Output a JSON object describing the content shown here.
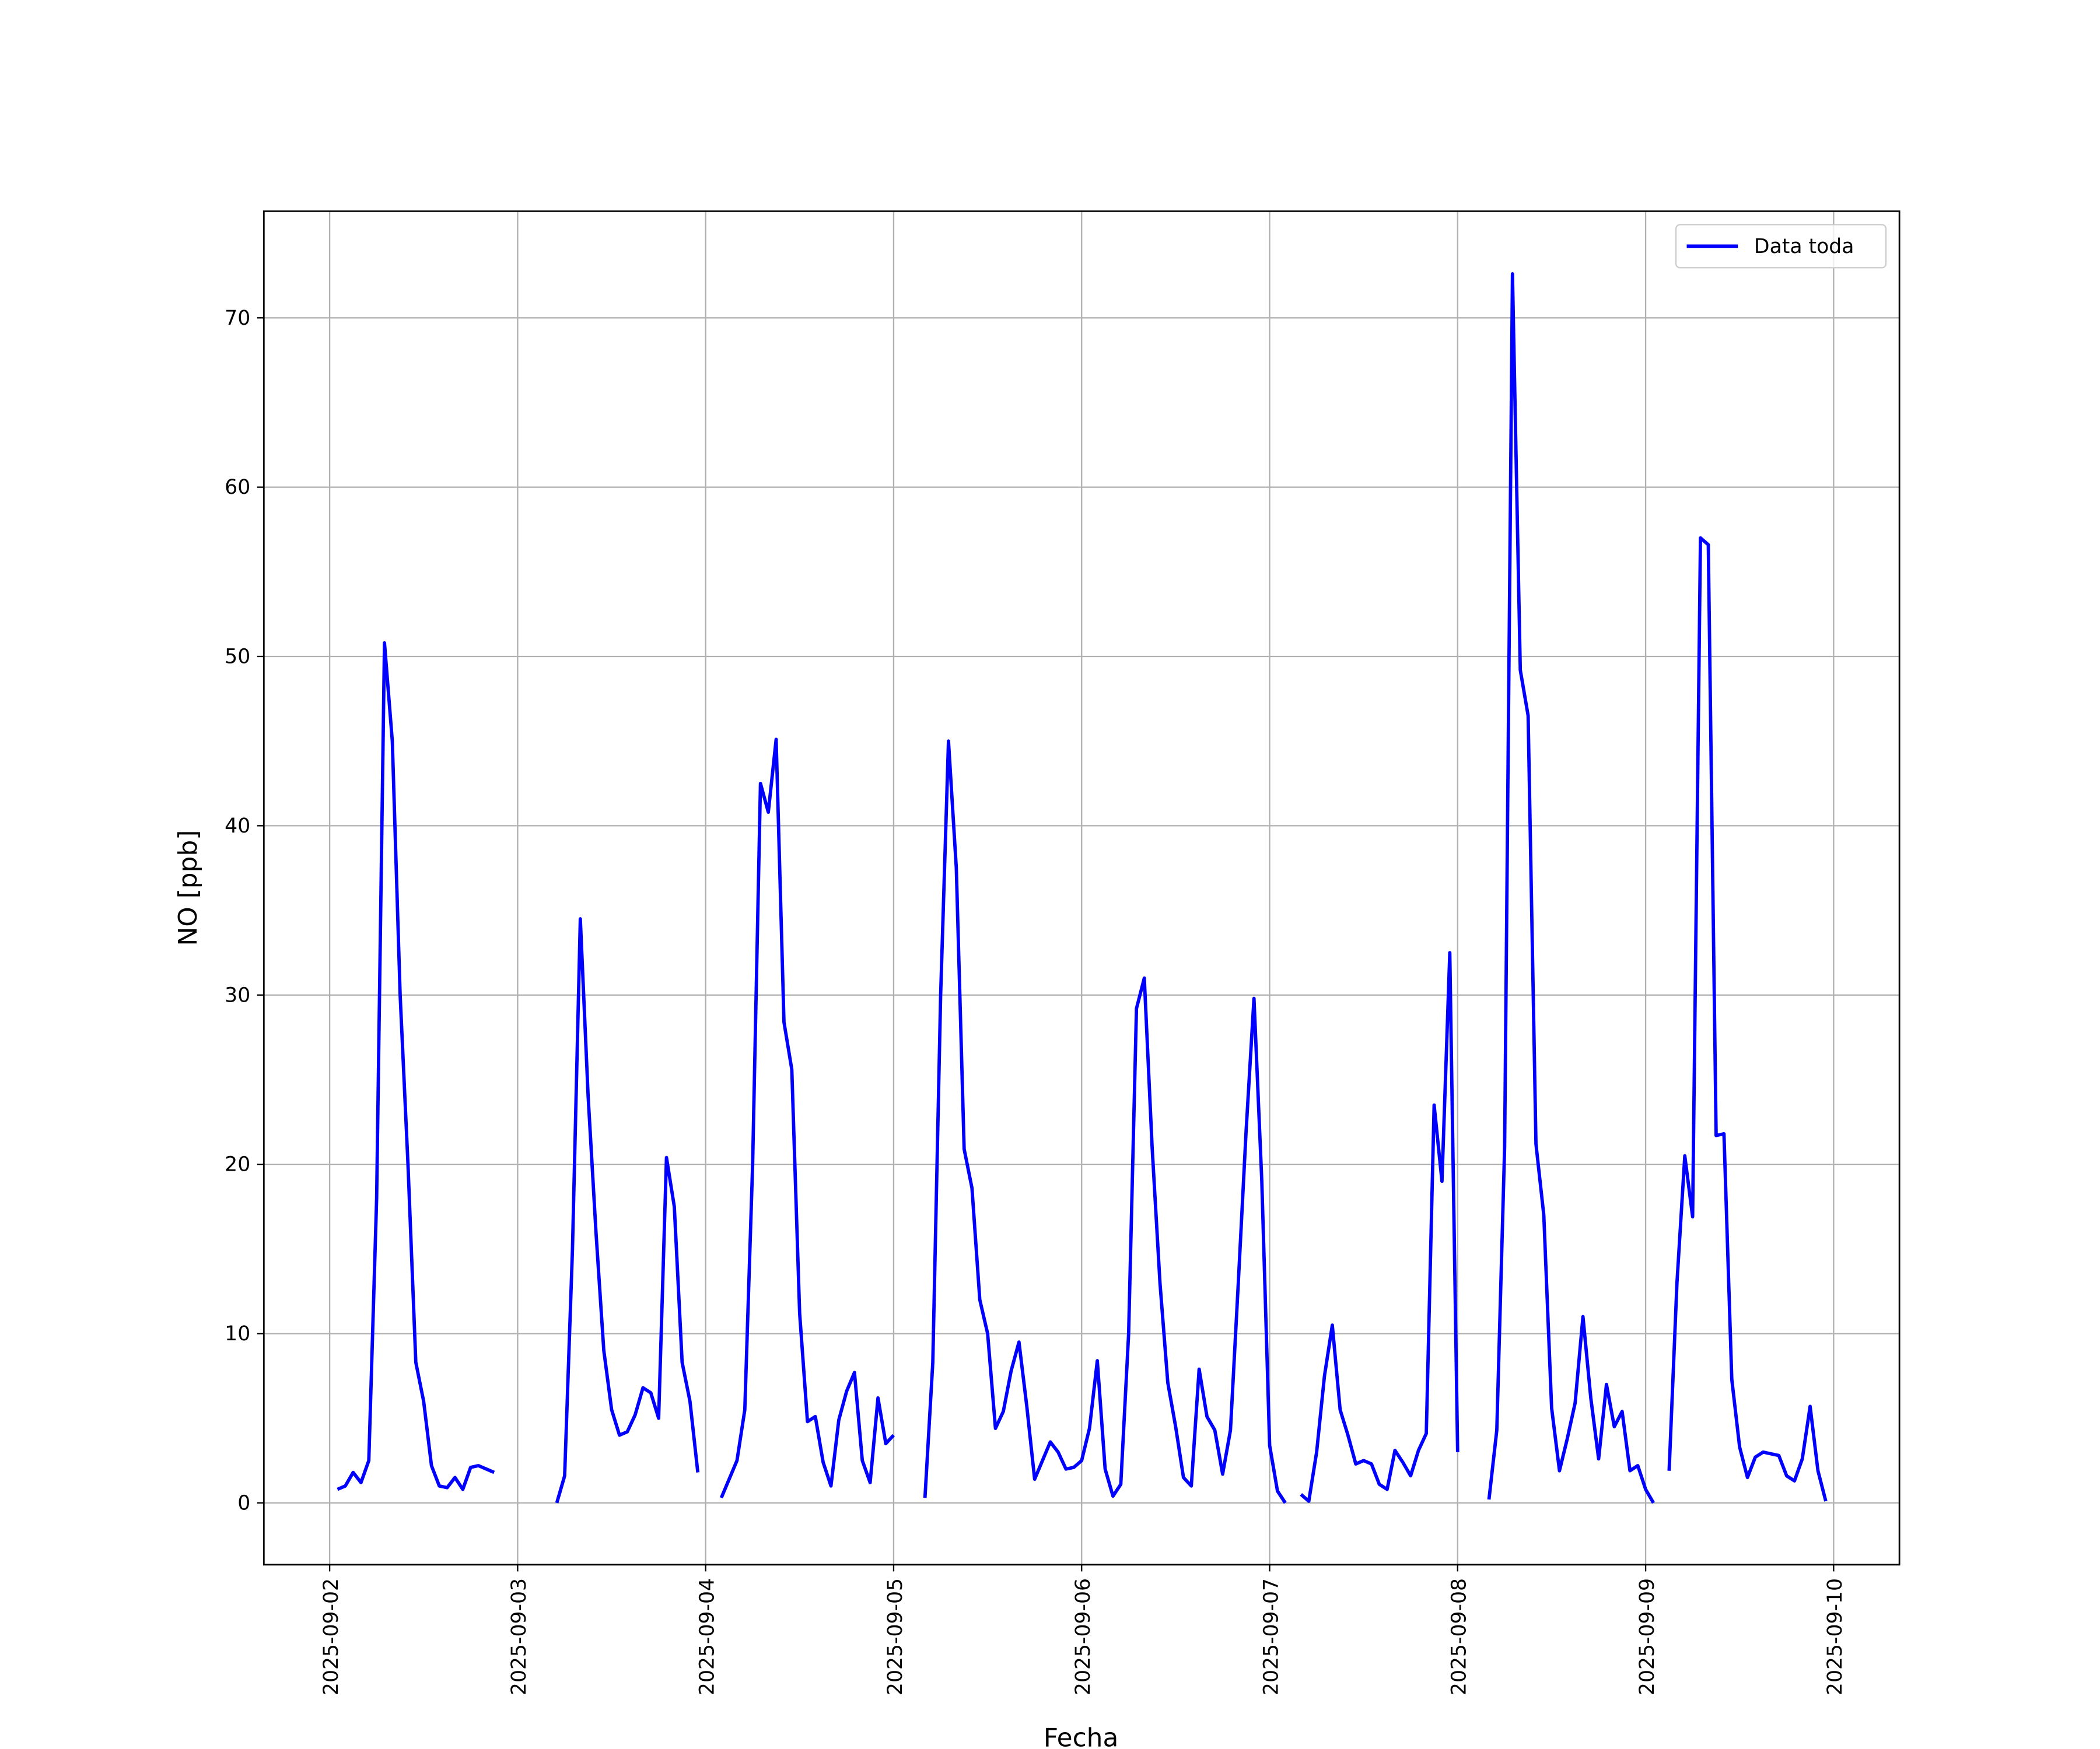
{
  "chart_data": {
    "type": "line",
    "x_label": "Fecha",
    "y_label": "NO [ppb]",
    "xlim": [
      "2025-09-01T15:36",
      "2025-09-10T08:24"
    ],
    "xticks": [
      "2025-09-02",
      "2025-09-03",
      "2025-09-04",
      "2025-09-05",
      "2025-09-06",
      "2025-09-07",
      "2025-09-08",
      "2025-09-09",
      "2025-09-10"
    ],
    "ylim": [
      -3.65,
      76.3
    ],
    "yticks": [
      0,
      10,
      20,
      30,
      40,
      50,
      60,
      70
    ],
    "grid": true,
    "legend": "upper right",
    "series": [
      {
        "name": "Data toda",
        "color": "#0000ff",
        "x": [
          "2025-09-02T01:00",
          "2025-09-02T02:00",
          "2025-09-02T03:00",
          "2025-09-02T04:00",
          "2025-09-02T05:00",
          "2025-09-02T06:00",
          "2025-09-02T07:00",
          "2025-09-02T08:00",
          "2025-09-02T09:00",
          "2025-09-02T10:00",
          "2025-09-02T11:00",
          "2025-09-02T12:00",
          "2025-09-02T13:00",
          "2025-09-02T14:00",
          "2025-09-02T15:00",
          "2025-09-02T16:00",
          "2025-09-02T17:00",
          "2025-09-02T18:00",
          "2025-09-02T19:00",
          "2025-09-02T21:00",
          null,
          "2025-09-03T05:00",
          "2025-09-03T06:00",
          "2025-09-03T07:00",
          "2025-09-03T08:00",
          "2025-09-03T09:00",
          "2025-09-03T10:00",
          "2025-09-03T11:00",
          "2025-09-03T12:00",
          "2025-09-03T13:00",
          "2025-09-03T14:00",
          "2025-09-03T15:00",
          "2025-09-03T16:00",
          "2025-09-03T17:00",
          "2025-09-03T18:00",
          "2025-09-03T19:00",
          "2025-09-03T20:00",
          "2025-09-03T21:00",
          "2025-09-03T22:00",
          "2025-09-03T23:00",
          null,
          "2025-09-04T02:00",
          "2025-09-04T04:00",
          "2025-09-04T05:00",
          "2025-09-04T06:00",
          "2025-09-04T07:00",
          "2025-09-04T08:00",
          "2025-09-04T09:00",
          "2025-09-04T10:00",
          "2025-09-04T11:00",
          "2025-09-04T12:00",
          "2025-09-04T13:00",
          "2025-09-04T14:00",
          "2025-09-04T15:00",
          "2025-09-04T16:00",
          "2025-09-04T17:00",
          "2025-09-04T18:00",
          "2025-09-04T19:00",
          "2025-09-04T20:00",
          "2025-09-04T21:00",
          "2025-09-04T22:00",
          "2025-09-04T23:00",
          "2025-09-05T00:00",
          null,
          "2025-09-05T04:00",
          "2025-09-05T05:00",
          "2025-09-05T06:00",
          "2025-09-05T07:00",
          "2025-09-05T08:00",
          "2025-09-05T09:00",
          "2025-09-05T10:00",
          "2025-09-05T11:00",
          "2025-09-05T12:00",
          "2025-09-05T13:00",
          "2025-09-05T14:00",
          "2025-09-05T15:00",
          "2025-09-05T16:00",
          "2025-09-05T17:00",
          "2025-09-05T18:00",
          "2025-09-05T19:00",
          "2025-09-05T20:00",
          "2025-09-05T21:00",
          "2025-09-05T22:00",
          "2025-09-05T23:00",
          "2025-09-06T00:00",
          "2025-09-06T01:00",
          "2025-09-06T02:00",
          "2025-09-06T03:00",
          "2025-09-06T04:00",
          "2025-09-06T05:00",
          "2025-09-06T06:00",
          "2025-09-06T07:00",
          "2025-09-06T08:00",
          "2025-09-06T09:00",
          "2025-09-06T10:00",
          "2025-09-06T11:00",
          "2025-09-06T12:00",
          "2025-09-06T13:00",
          "2025-09-06T14:00",
          "2025-09-06T15:00",
          "2025-09-06T16:00",
          "2025-09-06T17:00",
          "2025-09-06T18:00",
          "2025-09-06T19:00",
          "2025-09-06T20:00",
          "2025-09-06T21:00",
          "2025-09-06T22:00",
          "2025-09-06T23:00",
          "2025-09-07T00:00",
          "2025-09-07T01:00",
          "2025-09-07T02:00",
          null,
          "2025-09-07T04:00",
          "2025-09-07T05:00",
          "2025-09-07T06:00",
          "2025-09-07T07:00",
          "2025-09-07T08:00",
          "2025-09-07T09:00",
          "2025-09-07T10:00",
          "2025-09-07T11:00",
          "2025-09-07T12:00",
          "2025-09-07T13:00",
          "2025-09-07T14:00",
          "2025-09-07T15:00",
          "2025-09-07T16:00",
          "2025-09-07T17:00",
          "2025-09-07T18:00",
          "2025-09-07T19:00",
          "2025-09-07T20:00",
          "2025-09-07T21:00",
          "2025-09-07T22:00",
          "2025-09-07T23:00",
          "2025-09-08T00:00",
          null,
          "2025-09-08T04:00",
          "2025-09-08T05:00",
          "2025-09-08T06:00",
          "2025-09-08T07:00",
          "2025-09-08T08:00",
          "2025-09-08T09:00",
          "2025-09-08T10:00",
          "2025-09-08T11:00",
          "2025-09-08T12:00",
          "2025-09-08T13:00",
          "2025-09-08T14:00",
          "2025-09-08T15:00",
          "2025-09-08T16:00",
          "2025-09-08T17:00",
          "2025-09-08T18:00",
          "2025-09-08T19:00",
          "2025-09-08T20:00",
          "2025-09-08T21:00",
          "2025-09-08T22:00",
          "2025-09-08T23:00",
          "2025-09-09T00:00",
          "2025-09-09T01:00",
          null,
          "2025-09-09T03:00",
          "2025-09-09T04:00",
          "2025-09-09T05:00",
          "2025-09-09T06:00",
          "2025-09-09T07:00",
          "2025-09-09T08:00",
          "2025-09-09T09:00",
          "2025-09-09T10:00",
          "2025-09-09T11:00",
          "2025-09-09T12:00",
          "2025-09-09T13:00",
          "2025-09-09T14:00",
          "2025-09-09T15:00",
          "2025-09-09T16:00",
          "2025-09-09T17:00",
          "2025-09-09T18:00",
          "2025-09-09T19:00",
          "2025-09-09T20:00",
          "2025-09-09T21:00",
          "2025-09-09T22:00",
          "2025-09-09T23:00"
        ],
        "values": [
          0.8,
          1.0,
          1.8,
          1.2,
          2.5,
          18,
          50.8,
          45,
          30,
          20,
          8.3,
          6,
          2.2,
          1.0,
          0.9,
          1.5,
          0.8,
          2.1,
          2.2,
          1.8,
          null,
          0,
          1.6,
          15,
          34.5,
          24,
          16,
          9,
          5.5,
          4.0,
          4.2,
          5.2,
          6.8,
          6.5,
          5.0,
          20.4,
          17.5,
          8.3,
          6.0,
          1.8,
          null,
          0.3,
          2.5,
          5.5,
          20,
          42.5,
          40.8,
          45.1,
          28.4,
          25.6,
          11.2,
          4.8,
          5.1,
          2.4,
          1.0,
          4.9,
          6.6,
          7.7,
          2.5,
          1.2,
          6.2,
          3.5,
          4.0,
          null,
          0.3,
          8.3,
          30,
          45,
          37.5,
          20.9,
          18.6,
          12,
          10,
          4.4,
          5.4,
          7.8,
          9.5,
          5.7,
          1.4,
          2.5,
          3.6,
          3.0,
          2.0,
          2.1,
          2.5,
          4.4,
          8.4,
          2.0,
          0.4,
          1.1,
          10,
          29.2,
          31,
          21,
          13,
          7.1,
          4.5,
          1.5,
          1.0,
          7.9,
          5.1,
          4.3,
          1.7,
          4.3,
          13,
          22,
          29.8,
          19,
          3.4,
          0.7,
          0.0,
          null,
          0.5,
          0.1,
          3,
          7.5,
          10.5,
          5.5,
          4.0,
          2.3,
          2.5,
          2.3,
          1.1,
          0.8,
          3.1,
          2.4,
          1.6,
          3.1,
          4.1,
          23.5,
          19,
          32.5,
          3.0,
          null,
          0.2,
          4.3,
          21,
          72.6,
          49.2,
          46.5,
          21.2,
          17,
          5.6,
          1.9,
          3.8,
          5.9,
          11,
          6.2,
          2.6,
          7.0,
          4.5,
          5.4,
          1.9,
          2.2,
          0.8,
          0.0,
          null,
          1.9,
          13,
          20.5,
          16.9,
          57,
          56.6,
          21.7,
          21.8,
          7.3,
          3.3,
          1.5,
          2.7,
          3.0,
          2.9,
          2.8,
          1.6,
          1.3,
          2.6,
          5.7,
          1.9,
          0.1
        ]
      }
    ]
  }
}
